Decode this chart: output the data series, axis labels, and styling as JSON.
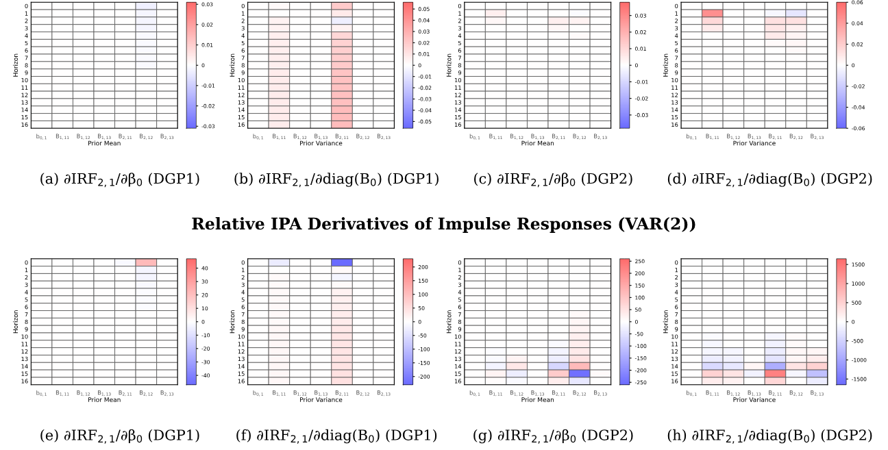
{
  "chart_data": [
    {
      "type": "heatmap",
      "xlabel": "Prior Mean",
      "ylabel": "Horizon",
      "annotations": [
        "(a) ∂IRF$_{2,1}$/∂β$_{0}$ (DGP1)"
      ],
      "categories": [
        "b$_{0,1}$",
        "B$_{1,11}$",
        "B$_{1,12}$",
        "B$_{1,13}$",
        "B$_{2,11}$",
        "B$_{2,12}$",
        "B$_{2,13}$"
      ],
      "y_categories": [
        "0",
        "1",
        "2",
        "3",
        "4",
        "5",
        "6",
        "7",
        "8",
        "9",
        "10",
        "11",
        "12",
        "13",
        "14",
        "15",
        "16"
      ],
      "colors": [
        "#6b6bff",
        "#ffffff",
        "#ff6b6b"
      ],
      "clim": [
        -0.031,
        0.031
      ],
      "cticks": [
        -0.03,
        -0.02,
        -0.01,
        0,
        0.01,
        0.02,
        0.03
      ],
      "cells": [
        [
          0,
          0,
          0,
          0,
          0,
          -0.003,
          0
        ],
        [
          0,
          0,
          0,
          0,
          0,
          -0.002,
          0
        ],
        [
          0,
          0,
          0,
          0,
          0,
          -0.002,
          0
        ],
        [
          0,
          0,
          0,
          0,
          0,
          -0.002,
          0
        ],
        [
          0,
          0,
          0,
          0,
          0,
          -0.001,
          0
        ],
        [
          0,
          0,
          0,
          0,
          0,
          -0.001,
          0
        ],
        [
          0,
          0,
          0,
          0,
          0,
          -0.001,
          0
        ],
        [
          0,
          0,
          0,
          0,
          0,
          -0.001,
          0
        ],
        [
          0,
          0,
          0,
          0,
          0,
          -0.001,
          0
        ],
        [
          0,
          0,
          0,
          0,
          0,
          0,
          0
        ],
        [
          0,
          0,
          0,
          0,
          0,
          0,
          0
        ],
        [
          0,
          0,
          0,
          0,
          0,
          0,
          0
        ],
        [
          0,
          0,
          0,
          0,
          0,
          0,
          0
        ],
        [
          0,
          0,
          0,
          0,
          0,
          0,
          0
        ],
        [
          0,
          0,
          0,
          0,
          0,
          0,
          0
        ],
        [
          0,
          0,
          0,
          0,
          0,
          0,
          0
        ],
        [
          0,
          0,
          0,
          0,
          0,
          0,
          0
        ]
      ]
    },
    {
      "type": "heatmap",
      "xlabel": "Prior Variance",
      "ylabel": "Horizon",
      "annotations": [
        "(b) ∂IRF$_{2,1}$/∂diag(B$_{0}$) (DGP1)"
      ],
      "categories": [
        "b$_{0,1}$",
        "B$_{1,11}$",
        "B$_{1,12}$",
        "B$_{1,13}$",
        "B$_{2,11}$",
        "B$_{2,12}$",
        "B$_{2,13}$"
      ],
      "y_categories": [
        "0",
        "1",
        "2",
        "3",
        "4",
        "5",
        "6",
        "7",
        "8",
        "9",
        "10",
        "11",
        "12",
        "13",
        "14",
        "15",
        "16"
      ],
      "colors": [
        "#6b6bff",
        "#ffffff",
        "#ff6b6b"
      ],
      "clim": [
        -0.056,
        0.056
      ],
      "cticks": [
        -0.05,
        -0.04,
        -0.03,
        -0.02,
        -0.01,
        0,
        0.01,
        0.02,
        0.03,
        0.04,
        0.05
      ],
      "cells": [
        [
          0,
          0.002,
          0,
          0,
          0.02,
          0,
          0
        ],
        [
          0,
          0,
          0,
          0,
          0.008,
          0,
          0
        ],
        [
          0,
          0.005,
          0,
          0,
          -0.006,
          0,
          0
        ],
        [
          0,
          0.005,
          0,
          0,
          0.005,
          0,
          0
        ],
        [
          0,
          0.006,
          0,
          0,
          0.015,
          0,
          0
        ],
        [
          0,
          0.006,
          0,
          0,
          0.017,
          0,
          0
        ],
        [
          0,
          0.006,
          0,
          0,
          0.018,
          0,
          0
        ],
        [
          0,
          0.006,
          0,
          0,
          0.019,
          0,
          0
        ],
        [
          0,
          0.006,
          0,
          0,
          0.02,
          0,
          0
        ],
        [
          0,
          0.007,
          0,
          0,
          0.022,
          0,
          0
        ],
        [
          0,
          0.007,
          0,
          0,
          0.023,
          0,
          0
        ],
        [
          0,
          0.007,
          0,
          0,
          0.023,
          0,
          0
        ],
        [
          0,
          0.007,
          0,
          0,
          0.024,
          0,
          0
        ],
        [
          0,
          0.007,
          0,
          0,
          0.024,
          0,
          0
        ],
        [
          0,
          0.007,
          0,
          0,
          0.025,
          0,
          0
        ],
        [
          0,
          0.007,
          0,
          0,
          0.025,
          0,
          0
        ],
        [
          0,
          0.007,
          0,
          0,
          0.025,
          0,
          0
        ]
      ]
    },
    {
      "type": "heatmap",
      "xlabel": "Prior Mean",
      "ylabel": "Horizon",
      "annotations": [
        "(c) ∂IRF$_{2,1}$/∂β$_{0}$ (DGP2)"
      ],
      "categories": [
        "b$_{0,1}$",
        "B$_{1,11}$",
        "B$_{1,12}$",
        "B$_{1,13}$",
        "B$_{2,11}$",
        "B$_{2,12}$",
        "B$_{2,13}$"
      ],
      "y_categories": [
        "0",
        "1",
        "2",
        "3",
        "4",
        "5",
        "6",
        "7",
        "8",
        "9",
        "10",
        "11",
        "12",
        "13",
        "14",
        "15",
        "16"
      ],
      "colors": [
        "#6b6bff",
        "#ffffff",
        "#ff6b6b"
      ],
      "clim": [
        -0.038,
        0.038
      ],
      "cticks": [
        -0.03,
        -0.02,
        -0.01,
        0,
        0.01,
        0.02,
        0.03
      ],
      "cells": [
        [
          0,
          0,
          0,
          0,
          0,
          0,
          0
        ],
        [
          0,
          0.004,
          0,
          0,
          0,
          -0.001,
          0
        ],
        [
          0,
          0.002,
          0,
          0,
          0.004,
          0.003,
          0
        ],
        [
          0,
          0,
          0,
          0,
          0.002,
          0,
          0
        ],
        [
          0,
          0,
          0,
          0,
          0,
          0.001,
          0
        ],
        [
          0,
          0,
          0,
          0,
          0,
          0,
          0
        ],
        [
          0,
          0,
          0,
          0,
          0,
          0,
          0
        ],
        [
          0,
          0,
          0,
          0,
          0,
          0,
          0
        ],
        [
          0,
          0,
          0,
          0,
          0,
          0,
          0
        ],
        [
          0,
          0,
          0,
          0,
          0,
          0,
          0
        ],
        [
          0,
          0,
          0,
          0,
          0,
          0,
          0
        ],
        [
          0,
          0,
          0,
          0,
          0,
          0,
          0
        ],
        [
          0,
          0,
          0,
          0,
          0,
          0,
          0
        ],
        [
          0,
          0,
          0,
          0,
          0,
          0,
          0
        ],
        [
          0,
          0,
          0,
          0,
          0,
          0,
          0
        ],
        [
          0,
          0,
          0,
          0,
          0,
          0,
          0
        ],
        [
          0,
          0,
          0,
          0,
          0,
          0,
          0
        ]
      ]
    },
    {
      "type": "heatmap",
      "xlabel": "Prior Variance",
      "ylabel": "Horizon",
      "annotations": [
        "(d) ∂IRF$_{2,1}$/∂diag(B$_{0}$) (DGP2)"
      ],
      "categories": [
        "b$_{0,1}$",
        "B$_{1,11}$",
        "B$_{1,12}$",
        "B$_{1,13}$",
        "B$_{2,11}$",
        "B$_{2,12}$",
        "B$_{2,13}$"
      ],
      "y_categories": [
        "0",
        "1",
        "2",
        "3",
        "4",
        "5",
        "6",
        "7",
        "8",
        "9",
        "10",
        "11",
        "12",
        "13",
        "14",
        "15",
        "16"
      ],
      "colors": [
        "#6b6bff",
        "#ffffff",
        "#ff6b6b"
      ],
      "clim": [
        -0.06,
        0.06
      ],
      "cticks": [
        {
          "value": -0.06,
          "label": "-0.06"
        },
        {
          "value": -0.04,
          "label": "-0.04"
        },
        {
          "value": -0.02,
          "label": "-0.02"
        },
        0,
        {
          "value": 0.02,
          "label": "0.02"
        },
        {
          "value": 0.04,
          "label": "0.04"
        },
        {
          "value": 0.06,
          "label": "0.06"
        }
      ],
      "cells": [
        [
          0,
          0,
          0,
          0,
          0,
          0,
          0
        ],
        [
          0,
          0.045,
          0,
          0,
          -0.003,
          -0.01,
          0
        ],
        [
          0,
          0.015,
          0,
          0,
          0.012,
          0.012,
          0
        ],
        [
          0,
          0.008,
          0,
          0,
          0.01,
          0.006,
          0
        ],
        [
          0,
          0,
          0,
          0,
          0.008,
          0.004,
          0
        ],
        [
          0,
          0,
          0,
          0,
          0.002,
          0.003,
          0
        ],
        [
          0,
          0,
          0,
          0,
          0,
          0.002,
          0
        ],
        [
          0,
          0,
          0,
          0,
          0,
          0,
          0
        ],
        [
          0,
          0,
          0,
          0,
          0,
          0,
          0
        ],
        [
          0,
          0,
          0,
          0,
          0,
          0,
          0
        ],
        [
          0,
          0,
          0,
          0,
          0,
          0,
          0
        ],
        [
          0,
          0,
          0,
          0,
          0,
          0,
          0
        ],
        [
          0,
          0,
          0,
          0,
          0,
          0,
          0
        ],
        [
          0,
          0,
          0,
          0,
          0,
          0,
          0
        ],
        [
          0,
          0,
          0,
          0,
          0,
          0,
          0
        ],
        [
          0,
          0,
          0,
          0,
          0,
          0,
          0
        ],
        [
          0,
          0,
          0,
          0,
          0,
          0,
          0
        ]
      ]
    },
    {
      "type": "other",
      "title": "Relative IPA Derivatives of Impulse Responses (VAR(2))"
    },
    {
      "type": "heatmap",
      "xlabel": "Prior Mean",
      "ylabel": "Horizon",
      "annotations": [
        "(e) ∂IRF$_{2,1}$/∂β$_{0}$ (DGP1)"
      ],
      "categories": [
        "b$_{0,1}$",
        "B$_{1,11}$",
        "B$_{1,12}$",
        "B$_{1,13}$",
        "B$_{2,11}$",
        "B$_{2,12}$",
        "B$_{2,13}$"
      ],
      "y_categories": [
        "0",
        "1",
        "2",
        "3",
        "4",
        "5",
        "6",
        "7",
        "8",
        "9",
        "10",
        "11",
        "12",
        "13",
        "14",
        "15",
        "16"
      ],
      "colors": [
        "#6b6bff",
        "#ffffff",
        "#ff6b6b"
      ],
      "clim": [
        -47,
        47
      ],
      "cticks": [
        -40,
        -30,
        -20,
        -10,
        0,
        10,
        20,
        30,
        40
      ],
      "cells": [
        [
          0,
          0,
          0,
          0,
          -2,
          22,
          0
        ],
        [
          0,
          0,
          0,
          0,
          0,
          -3,
          0
        ],
        [
          0,
          0,
          0,
          0,
          0,
          -3,
          0
        ],
        [
          0,
          0,
          0,
          0,
          0,
          -2,
          0
        ],
        [
          0,
          0,
          0,
          0,
          0,
          -1,
          0
        ],
        [
          0,
          0,
          0,
          0,
          0,
          -1,
          0
        ],
        [
          0,
          0,
          0,
          0,
          0,
          -1,
          0
        ],
        [
          0,
          0,
          0,
          0,
          0,
          0,
          0
        ],
        [
          0,
          0,
          0,
          0,
          0,
          0,
          0
        ],
        [
          0,
          0,
          0,
          0,
          0,
          0,
          0
        ],
        [
          0,
          0,
          0,
          0,
          0,
          0,
          0
        ],
        [
          0,
          0,
          0,
          0,
          0,
          0,
          0
        ],
        [
          0,
          0,
          0,
          0,
          0,
          0,
          0
        ],
        [
          0,
          0,
          0,
          0,
          0,
          0,
          0
        ],
        [
          0,
          0,
          0,
          0,
          0,
          0,
          0
        ],
        [
          0,
          0,
          0,
          0,
          0,
          0,
          0
        ],
        [
          0,
          0,
          0,
          0,
          0,
          0,
          0
        ]
      ]
    },
    {
      "type": "heatmap",
      "xlabel": "Prior Variance",
      "ylabel": "Horizon",
      "annotations": [
        "(f) ∂IRF$_{2,1}$/∂diag(B$_{0}$) (DGP1)"
      ],
      "categories": [
        "b$_{0,1}$",
        "B$_{1,11}$",
        "B$_{1,12}$",
        "B$_{1,13}$",
        "B$_{2,11}$",
        "B$_{2,12}$",
        "B$_{2,13}$"
      ],
      "y_categories": [
        "0",
        "1",
        "2",
        "3",
        "4",
        "5",
        "6",
        "7",
        "8",
        "9",
        "10",
        "11",
        "12",
        "13",
        "14",
        "15",
        "16"
      ],
      "colors": [
        "#6b6bff",
        "#ffffff",
        "#ff6b6b"
      ],
      "clim": [
        -230,
        230
      ],
      "cticks": [
        -200,
        -150,
        -100,
        -50,
        0,
        50,
        100,
        150,
        200
      ],
      "cells": [
        [
          0,
          -30,
          0,
          0,
          -230,
          0,
          0
        ],
        [
          0,
          0,
          0,
          0,
          10,
          0,
          0
        ],
        [
          0,
          8,
          0,
          0,
          -15,
          0,
          0
        ],
        [
          0,
          8,
          0,
          0,
          8,
          0,
          0
        ],
        [
          0,
          10,
          0,
          0,
          20,
          0,
          0
        ],
        [
          0,
          10,
          0,
          0,
          22,
          0,
          0
        ],
        [
          0,
          10,
          0,
          0,
          25,
          0,
          0
        ],
        [
          0,
          10,
          0,
          0,
          28,
          0,
          0
        ],
        [
          0,
          10,
          0,
          0,
          30,
          0,
          0
        ],
        [
          0,
          12,
          0,
          0,
          35,
          0,
          0
        ],
        [
          0,
          12,
          0,
          0,
          38,
          0,
          0
        ],
        [
          0,
          12,
          0,
          0,
          40,
          0,
          0
        ],
        [
          0,
          12,
          0,
          0,
          40,
          0,
          0
        ],
        [
          0,
          12,
          0,
          0,
          42,
          0,
          0
        ],
        [
          0,
          12,
          0,
          0,
          42,
          0,
          0
        ],
        [
          0,
          12,
          0,
          0,
          45,
          0,
          0
        ],
        [
          0,
          12,
          0,
          0,
          45,
          0,
          0
        ]
      ]
    },
    {
      "type": "heatmap",
      "xlabel": "Prior Mean",
      "ylabel": "Horizon",
      "annotations": [
        "(g) ∂IRF$_{2,1}$/∂β$_{0}$ (DGP2)"
      ],
      "categories": [
        "b$_{0,1}$",
        "B$_{1,11}$",
        "B$_{1,12}$",
        "B$_{1,13}$",
        "B$_{2,11}$",
        "B$_{2,12}$",
        "B$_{2,13}$"
      ],
      "y_categories": [
        "0",
        "1",
        "2",
        "3",
        "4",
        "5",
        "6",
        "7",
        "8",
        "9",
        "10",
        "11",
        "12",
        "13",
        "14",
        "15",
        "16"
      ],
      "colors": [
        "#6b6bff",
        "#ffffff",
        "#ff6b6b"
      ],
      "clim": [
        -260,
        260
      ],
      "cticks": [
        -250,
        -200,
        -150,
        -100,
        -50,
        0,
        50,
        100,
        150,
        200,
        250
      ],
      "cells": [
        [
          0,
          0,
          0,
          0,
          0,
          0,
          0
        ],
        [
          0,
          0,
          0,
          0,
          0,
          0,
          0
        ],
        [
          0,
          0,
          0,
          0,
          0,
          0,
          0
        ],
        [
          0,
          0,
          0,
          0,
          0,
          0,
          0
        ],
        [
          0,
          0,
          0,
          0,
          0,
          0,
          0
        ],
        [
          0,
          0,
          0,
          0,
          0,
          0,
          0
        ],
        [
          0,
          0,
          0,
          0,
          0,
          0,
          0
        ],
        [
          0,
          0,
          0,
          0,
          0,
          10,
          0
        ],
        [
          0,
          0,
          0,
          0,
          0,
          15,
          0
        ],
        [
          0,
          0,
          0,
          0,
          0,
          20,
          0
        ],
        [
          0,
          0,
          0,
          0,
          0,
          25,
          0
        ],
        [
          0,
          0,
          0,
          0,
          -10,
          30,
          0
        ],
        [
          0,
          -5,
          0,
          0,
          -20,
          35,
          0
        ],
        [
          0,
          -10,
          20,
          0,
          -30,
          50,
          0
        ],
        [
          0,
          -20,
          40,
          0,
          -70,
          120,
          0
        ],
        [
          0,
          20,
          -30,
          0,
          90,
          -250,
          10
        ],
        [
          0,
          5,
          -10,
          0,
          30,
          -40,
          0
        ]
      ]
    },
    {
      "type": "heatmap",
      "xlabel": "Prior Variance",
      "ylabel": "Horizon",
      "annotations": [
        "(h) ∂IRF$_{2,1}$/∂diag(B$_{0}$) (DGP2)"
      ],
      "categories": [
        "b$_{0,1}$",
        "B$_{1,11}$",
        "B$_{1,12}$",
        "B$_{1,13}$",
        "B$_{2,11}$",
        "B$_{2,12}$",
        "B$_{2,13}$"
      ],
      "y_categories": [
        "0",
        "1",
        "2",
        "3",
        "4",
        "5",
        "6",
        "7",
        "8",
        "9",
        "10",
        "11",
        "12",
        "13",
        "14",
        "15",
        "16"
      ],
      "colors": [
        "#6b6bff",
        "#ffffff",
        "#ff6b6b"
      ],
      "clim": [
        -1650,
        1650
      ],
      "cticks": [
        -1500,
        -1000,
        -500,
        0,
        500,
        1000,
        1500
      ],
      "cells": [
        [
          0,
          0,
          0,
          0,
          0,
          0,
          0
        ],
        [
          0,
          0,
          0,
          0,
          0,
          0,
          0
        ],
        [
          0,
          0,
          0,
          0,
          0,
          0,
          0
        ],
        [
          0,
          0,
          0,
          0,
          0,
          0,
          0
        ],
        [
          0,
          0,
          0,
          0,
          0,
          0,
          0
        ],
        [
          0,
          0,
          0,
          0,
          0,
          0,
          0
        ],
        [
          0,
          0,
          0,
          0,
          0,
          0,
          0
        ],
        [
          0,
          0,
          0,
          0,
          0,
          0,
          0
        ],
        [
          0,
          0,
          0,
          0,
          0,
          0,
          0
        ],
        [
          0,
          0,
          0,
          0,
          0,
          0,
          0
        ],
        [
          0,
          -50,
          0,
          0,
          -100,
          50,
          0
        ],
        [
          0,
          -80,
          0,
          0,
          -150,
          60,
          0
        ],
        [
          0,
          -100,
          -100,
          0,
          -200,
          80,
          100
        ],
        [
          0,
          -200,
          -150,
          0,
          -300,
          100,
          200
        ],
        [
          0,
          -400,
          -250,
          100,
          -900,
          300,
          500
        ],
        [
          0,
          500,
          300,
          -150,
          1400,
          -100,
          -700
        ],
        [
          0,
          200,
          150,
          0,
          450,
          0,
          -200
        ]
      ]
    }
  ]
}
